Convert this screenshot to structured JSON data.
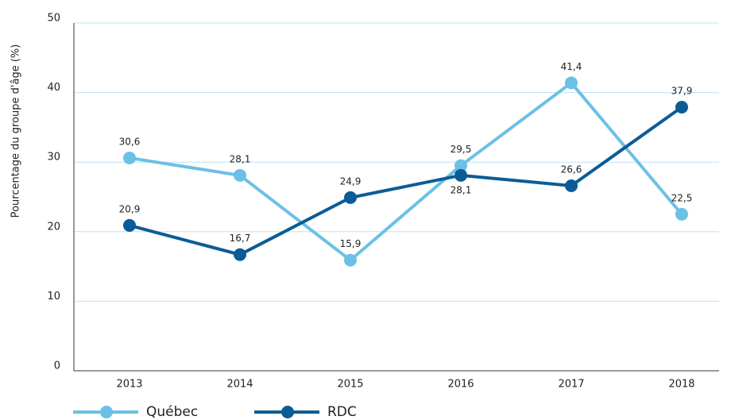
{
  "chart_data": {
    "type": "line",
    "y_label": "Pourcentage du groupe d'âge (%)",
    "categories": [
      "2013",
      "2014",
      "2015",
      "2016",
      "2017",
      "2018"
    ],
    "series": [
      {
        "name": "Québec",
        "color": "#6cc0e5",
        "values": [
          30.6,
          28.1,
          15.9,
          29.5,
          41.4,
          22.5
        ],
        "value_labels": [
          "30,6",
          "28,1",
          "15,9",
          "29,5",
          "41,4",
          "22,5"
        ]
      },
      {
        "name": "RDC",
        "color": "#0b5c96",
        "values": [
          20.9,
          16.7,
          24.9,
          28.1,
          26.6,
          37.9
        ],
        "value_labels": [
          "20,9",
          "16,7",
          "24,9",
          "28,1",
          "26,6",
          "37,9"
        ]
      }
    ],
    "ylim": [
      0,
      50
    ],
    "yticks": [
      0,
      10,
      20,
      30,
      40,
      50
    ],
    "grid": true
  }
}
